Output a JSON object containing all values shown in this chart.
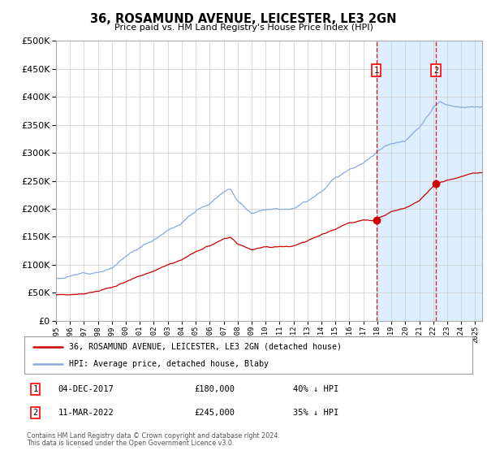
{
  "title": "36, ROSAMUND AVENUE, LEICESTER, LE3 2GN",
  "subtitle": "Price paid vs. HM Land Registry's House Price Index (HPI)",
  "legend_line1": "36, ROSAMUND AVENUE, LEICESTER, LE3 2GN (detached house)",
  "legend_line2": "HPI: Average price, detached house, Blaby",
  "footnote1": "Contains HM Land Registry data © Crown copyright and database right 2024.",
  "footnote2": "This data is licensed under the Open Government Licence v3.0.",
  "annotation1_label": "1",
  "annotation1_date": "04-DEC-2017",
  "annotation1_price": "£180,000",
  "annotation1_hpi": "40% ↓ HPI",
  "annotation2_label": "2",
  "annotation2_date": "11-MAR-2022",
  "annotation2_price": "£245,000",
  "annotation2_hpi": "35% ↓ HPI",
  "marker1_x": 2017.92,
  "marker1_y": 180000,
  "marker2_x": 2022.19,
  "marker2_y": 245000,
  "vline1_x": 2017.92,
  "vline2_x": 2022.19,
  "red_line_color": "#cc0000",
  "blue_line_color": "#88aadd",
  "shaded_region_color": "#ddeeff",
  "grid_color": "#cccccc",
  "ylim": [
    0,
    500000
  ],
  "xlim": [
    1995.0,
    2025.5
  ],
  "yticks": [
    0,
    50000,
    100000,
    150000,
    200000,
    250000,
    300000,
    350000,
    400000,
    450000,
    500000
  ],
  "blue_key_years": [
    1995,
    1996,
    1997,
    1998,
    1999,
    2000,
    2001,
    2002,
    2003,
    2004,
    2005,
    2006,
    2007,
    2007.5,
    2008,
    2009,
    2010,
    2011,
    2012,
    2013,
    2014,
    2015,
    2016,
    2017,
    2018,
    2019,
    2020,
    2021,
    2022,
    2022.5,
    2023,
    2024,
    2025
  ],
  "blue_key_vals": [
    75000,
    80000,
    85000,
    92000,
    100000,
    120000,
    135000,
    150000,
    170000,
    185000,
    205000,
    220000,
    240000,
    245000,
    225000,
    205000,
    215000,
    218000,
    222000,
    235000,
    255000,
    278000,
    295000,
    310000,
    330000,
    345000,
    350000,
    370000,
    405000,
    415000,
    408000,
    400000,
    400000
  ],
  "red_key_years": [
    1995,
    1996,
    1997,
    1998,
    1999,
    2000,
    2001,
    2002,
    2003,
    2004,
    2005,
    2006,
    2007,
    2007.5,
    2008,
    2009,
    2010,
    2011,
    2012,
    2013,
    2014,
    2015,
    2016,
    2017,
    2017.92,
    2018,
    2019,
    2020,
    2021,
    2022,
    2022.19,
    2023,
    2024,
    2025
  ],
  "red_key_vals": [
    47000,
    49000,
    51000,
    55000,
    60000,
    72000,
    82000,
    90000,
    103000,
    112000,
    127000,
    135000,
    147000,
    150000,
    138000,
    126000,
    131000,
    133000,
    135000,
    143000,
    155000,
    168000,
    179000,
    184000,
    180000,
    186000,
    196000,
    203000,
    215000,
    240000,
    245000,
    252000,
    258000,
    262000
  ]
}
